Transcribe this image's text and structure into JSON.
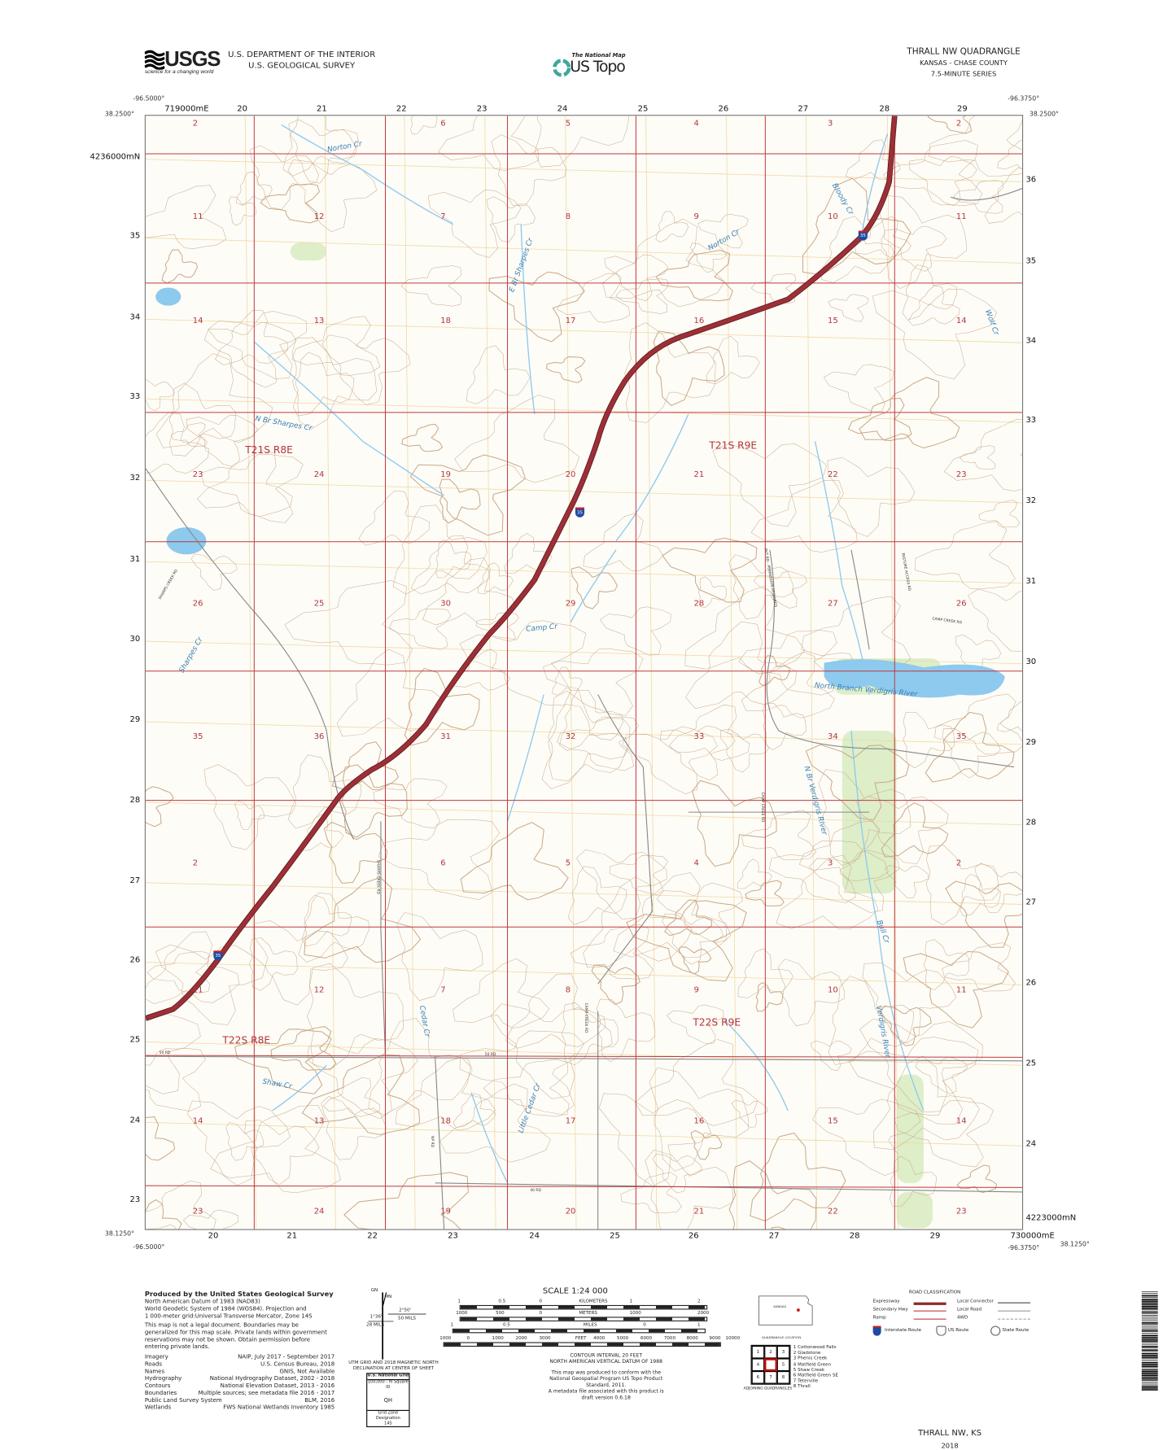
{
  "header": {
    "logo_text": "USGS",
    "logo_tagline": "science for a changing world",
    "agency_line1": "U.S. DEPARTMENT OF THE INTERIOR",
    "agency_line2": "U.S. GEOLOGICAL SURVEY",
    "national_map": "The National Map",
    "us_topo": "US Topo",
    "quad_title": "THRALL NW QUADRANGLE",
    "quad_state_county": "KANSAS - CHASE COUNTY",
    "quad_series": "7.5-MINUTE SERIES"
  },
  "map": {
    "corners": {
      "top_left_lon": "-96.5000°",
      "top_left_lat": "38.2500°",
      "top_right_lon": "-96.3750°",
      "top_right_lat": "38.2500°",
      "bottom_left_lon": "-96.5000°",
      "bottom_left_lat": "38.1250°",
      "bottom_right_lon": "-96.3750°",
      "bottom_right_lat": "38.1250°"
    },
    "easting_top": [
      "719000mE",
      "20",
      "21",
      "22",
      "23",
      "24",
      "25",
      "26",
      "27",
      "28",
      "29"
    ],
    "easting_bottom": [
      "20",
      "21",
      "22",
      "23",
      "24",
      "25",
      "26",
      "27",
      "28",
      "29",
      "730000mE"
    ],
    "northing_left": [
      "4236000mN",
      "35",
      "34",
      "33",
      "32",
      "31",
      "30",
      "29",
      "28",
      "27",
      "26",
      "25",
      "24",
      "23"
    ],
    "northing_right": [
      "36",
      "35",
      "34",
      "33",
      "32",
      "31",
      "30",
      "29",
      "28",
      "27",
      "26",
      "25",
      "24",
      "4223000mN"
    ],
    "section_rows": [
      [
        "2",
        "",
        "6",
        "5",
        "4",
        "3",
        "2"
      ],
      [
        "11",
        "12",
        "7",
        "8",
        "9",
        "10",
        "11"
      ],
      [
        "14",
        "13",
        "18",
        "17",
        "16",
        "15",
        "14"
      ],
      [
        "23",
        "24",
        "19",
        "20",
        "21",
        "22",
        "23"
      ],
      [
        "26",
        "25",
        "30",
        "29",
        "28",
        "27",
        "26"
      ],
      [
        "35",
        "36",
        "31",
        "32",
        "33",
        "34",
        "35"
      ],
      [
        "2",
        "",
        "6",
        "5",
        "4",
        "3",
        "2"
      ],
      [
        "11",
        "12",
        "7",
        "8",
        "9",
        "10",
        "11"
      ],
      [
        "14",
        "13",
        "18",
        "17",
        "16",
        "15",
        "14"
      ],
      [
        "23",
        "24",
        "19",
        "20",
        "21",
        "22",
        "23"
      ]
    ],
    "townships": [
      "T21S R8E",
      "T21S R9E",
      "T22S R8E",
      "T22S R9E"
    ],
    "water_names": [
      "Norton Cr",
      "Bloody Cr",
      "Norton Cr",
      "E Br Sharpes Cr",
      "Wolf Cr",
      "N Br Sharpes Cr",
      "Camp Cr",
      "North Branch Verdigris River",
      "Sharpes Cr",
      "N Br Verdigris River",
      "Bull Cr",
      "Shaw Cr",
      "Little Cedar Cr",
      "Cedar Cr",
      "Verdigris River"
    ],
    "road_names": [
      "PVT RD - PERMISSION REQUIRED",
      "PASTURE ACCESS RD",
      "CAMP CREEK RD",
      "SHARPS CREEK RD",
      "SHARPS CREEK RD",
      "CAMP CREEK RD",
      "CAMP CREEK RD",
      "50 RD",
      "50 RD",
      "40 RD",
      "NP RD"
    ],
    "interstate_shield": "35",
    "colors": {
      "interstate": "#9e2f36",
      "section_line": "#c0393f",
      "contour": "#c9a886",
      "water": "#8ec9ee",
      "utm_grid": "#f0d9a0",
      "woodland": "#cfe8b5"
    }
  },
  "footer": {
    "produced_by": "Produced by the United States Geological Survey",
    "datum_lines": [
      "North American Datum of 1983 (NAD83)",
      "World Geodetic System of 1984 (WGS84).  Projection and",
      "1 000-meter grid:Universal Transverse Mercator, Zone 14S"
    ],
    "disclaimer": [
      "This map is not a legal document. Boundaries may be",
      "generalized for this map scale. Private lands within government",
      "reservations may not be shown. Obtain permission before",
      "entering private lands."
    ],
    "credits": [
      {
        "label": "Imagery",
        "value": "NAIP, July 2017 - September 2017"
      },
      {
        "label": "Roads",
        "value": "U.S. Census Bureau, 2018"
      },
      {
        "label": "Names",
        "value": "GNIS, Not Available"
      },
      {
        "label": "Hydrography",
        "value": "National Hydrography Dataset, 2002 - 2018"
      },
      {
        "label": "Contours",
        "value": "National Elevation Dataset, 2013 - 2016"
      },
      {
        "label": "Boundaries",
        "value": "Multiple sources; see metadata file 2016 - 2017"
      },
      {
        "label": "Public Land Survey System",
        "value": "BLM, 2016"
      },
      {
        "label": "Wetlands",
        "value": "FWS National Wetlands Inventory 1985"
      }
    ],
    "declination": {
      "gn_label": "GN",
      "mn_label": "MN",
      "left_angle": "1°36'",
      "left_mils": "28 MILS",
      "right_angle": "2°50'",
      "right_mils": "50 MILS",
      "caption1": "UTM GRID AND 2018 MAGNETIC NORTH",
      "caption2": "DECLINATION AT CENTER OF SHEET"
    },
    "usng": {
      "title": "U.S. National Grid",
      "square_label": "100,000 - m Square ID",
      "square_id": "QH",
      "zone_label": "Grid Zone Designation",
      "zone": "14S"
    },
    "scale": {
      "title": "SCALE 1:24 000",
      "km_ticks": [
        "1",
        "0.5",
        "0",
        "1",
        "2"
      ],
      "km_unit": "KILOMETERS",
      "m_ticks": [
        "1000",
        "500",
        "0",
        "1000",
        "2000"
      ],
      "m_unit": "METERS",
      "mi_ticks": [
        "1",
        "0.5",
        "0",
        "1"
      ],
      "mi_unit": "MILES",
      "ft_ticks": [
        "1000",
        "0",
        "1000",
        "2000",
        "3000",
        "4000",
        "5000",
        "6000",
        "7000",
        "8000",
        "9000",
        "10000"
      ],
      "ft_unit": "FEET"
    },
    "contour_note1": "CONTOUR INTERVAL 20 FEET",
    "contour_note2": "NORTH AMERICAN VERTICAL DATUM OF 1988",
    "standard_note": [
      "This map was produced to conform with the",
      "National Geospatial Program US Topo Product Standard, 2011.",
      "A metadata file associated with this product is draft version 0.6.18"
    ],
    "location": {
      "state": "KANSAS",
      "caption": "QUADRANGLE LOCATION"
    },
    "adjoining": {
      "cells": [
        "1",
        "2",
        "3",
        "4",
        "",
        "5",
        "6",
        "7",
        "8"
      ],
      "names": [
        "1 Cottonwood Falls",
        "2 Gladstone",
        "3 Phenis Creek",
        "4 Matfield Green",
        "5 Shaw Creek",
        "6 Matfield Green SE",
        "7 Teterville",
        "8 Thrall"
      ],
      "caption": "ADJOINING QUADRANGLES"
    },
    "road_classification": {
      "title": "ROAD CLASSIFICATION",
      "items": [
        "Expressway",
        "Secondary Hwy",
        "Ramp",
        "Local Connector",
        "Local Road",
        "4WD"
      ],
      "routes": [
        "Interstate Route",
        "US Route",
        "State Route"
      ]
    },
    "sheet_name": "THRALL NW,  KS",
    "year": "2018"
  }
}
